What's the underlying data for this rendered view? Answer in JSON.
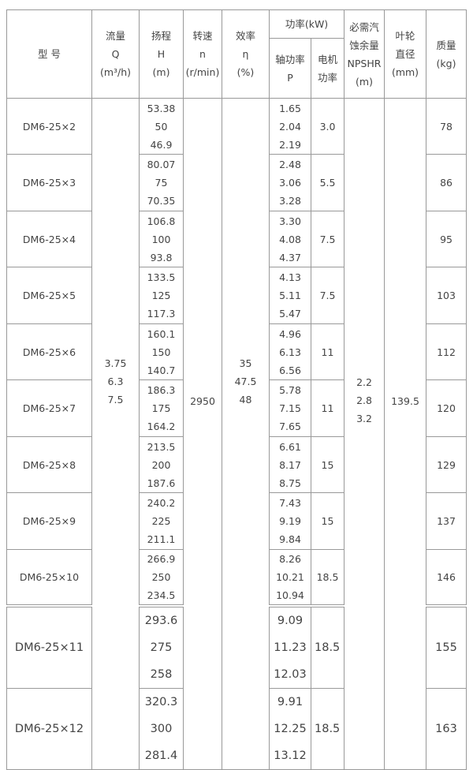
{
  "header": {
    "model": "型 号",
    "flow": [
      "流量",
      "Q",
      "(m³/h)"
    ],
    "head": [
      "扬程",
      "H",
      "(m)"
    ],
    "speed": [
      "转速",
      "n",
      "(r/min)"
    ],
    "efficiency": [
      "效率",
      "η",
      "(%)"
    ],
    "power": "功率(kW)",
    "shaft_power": [
      "轴功率",
      "P"
    ],
    "motor_power": [
      "电机",
      "功率"
    ],
    "npshr": [
      "必需汽",
      "蚀余量",
      "NPSHR",
      "(m)"
    ],
    "impeller": [
      "叶轮",
      "直径",
      "(mm)"
    ],
    "mass": [
      "质量",
      "(kg)"
    ]
  },
  "shared": {
    "flow": [
      "3.75",
      "6.3",
      "7.5"
    ],
    "speed": "2950",
    "efficiency": [
      "35",
      "47.5",
      "48"
    ],
    "npshr": [
      "2.2",
      "2.8",
      "3.2"
    ],
    "impeller": "139.5"
  },
  "rows": [
    {
      "model": "DM6-25×2",
      "head": [
        "53.38",
        "50",
        "46.9"
      ],
      "shaft": [
        "1.65",
        "2.04",
        "2.19"
      ],
      "motor": "3.0",
      "mass": "78"
    },
    {
      "model": "DM6-25×3",
      "head": [
        "80.07",
        "75",
        "70.35"
      ],
      "shaft": [
        "2.48",
        "3.06",
        "3.28"
      ],
      "motor": "5.5",
      "mass": "86"
    },
    {
      "model": "DM6-25×4",
      "head": [
        "106.8",
        "100",
        "93.8"
      ],
      "shaft": [
        "3.30",
        "4.08",
        "4.37"
      ],
      "motor": "7.5",
      "mass": "95"
    },
    {
      "model": "DM6-25×5",
      "head": [
        "133.5",
        "125",
        "117.3"
      ],
      "shaft": [
        "4.13",
        "5.11",
        "5.47"
      ],
      "motor": "7.5",
      "mass": "103"
    },
    {
      "model": "DM6-25×6",
      "head": [
        "160.1",
        "150",
        "140.7"
      ],
      "shaft": [
        "4.96",
        "6.13",
        "6.56"
      ],
      "motor": "11",
      "mass": "112"
    },
    {
      "model": "DM6-25×7",
      "head": [
        "186.3",
        "175",
        "164.2"
      ],
      "shaft": [
        "5.78",
        "7.15",
        "7.65"
      ],
      "motor": "11",
      "mass": "120"
    },
    {
      "model": "DM6-25×8",
      "head": [
        "213.5",
        "200",
        "187.6"
      ],
      "shaft": [
        "6.61",
        "8.17",
        "8.75"
      ],
      "motor": "15",
      "mass": "129"
    },
    {
      "model": "DM6-25×9",
      "head": [
        "240.2",
        "225",
        "211.1"
      ],
      "shaft": [
        "7.43",
        "9.19",
        "9.84"
      ],
      "motor": "15",
      "mass": "137"
    },
    {
      "model": "DM6-25×10",
      "head": [
        "266.9",
        "250",
        "234.5"
      ],
      "shaft": [
        "8.26",
        "10.21",
        "10.94"
      ],
      "motor": "18.5",
      "mass": "146"
    },
    {
      "model": "DM6-25×11",
      "head": [
        "293.6",
        "275",
        "258"
      ],
      "shaft": [
        "9.09",
        "11.23",
        "12.03"
      ],
      "motor": "18.5",
      "mass": "155"
    },
    {
      "model": "DM6-25×12",
      "head": [
        "320.3",
        "300",
        "281.4"
      ],
      "shaft": [
        "9.91",
        "12.25",
        "13.12"
      ],
      "motor": "18.5",
      "mass": "163"
    }
  ]
}
